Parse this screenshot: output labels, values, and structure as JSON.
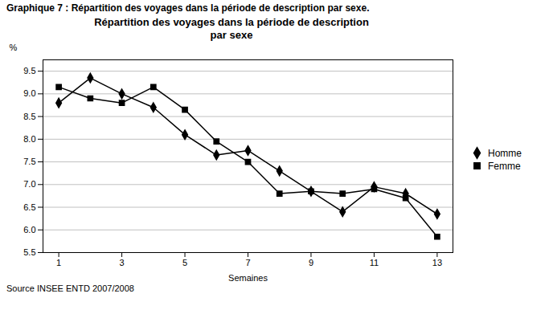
{
  "chart_data": {
    "type": "line",
    "title": "Graphique 7 : Répartition des voyages dans la période de description par sexe.",
    "subtitle": "Répartition des voyages dans la période de description\npar  sexe",
    "x_label": "Semaines",
    "y_label": "%",
    "source": "Source INSEE ENTD 2007/2008",
    "x": [
      1,
      2,
      3,
      4,
      5,
      6,
      7,
      8,
      9,
      10,
      11,
      12,
      13
    ],
    "series": [
      {
        "name": "Homme",
        "color": "#000000",
        "marker": "diamond",
        "values": [
          8.8,
          9.35,
          9.0,
          8.7,
          8.1,
          7.65,
          7.75,
          7.3,
          6.85,
          6.4,
          6.95,
          6.8,
          6.35
        ]
      },
      {
        "name": "Femme",
        "color": "#000000",
        "marker": "square",
        "values": [
          9.15,
          8.9,
          8.8,
          9.15,
          8.65,
          7.95,
          7.5,
          6.8,
          6.85,
          6.8,
          6.9,
          6.7,
          5.85
        ]
      }
    ],
    "xlim": [
      0.5,
      13.5
    ],
    "xticks": [
      1,
      3,
      5,
      7,
      9,
      11,
      13
    ],
    "ylim": [
      5.5,
      9.75
    ],
    "yticks": [
      5.5,
      {
        "value": 6.0,
        "label": "6.0"
      },
      6.5,
      {
        "value": 7.0,
        "label": "7.0"
      },
      7.5,
      {
        "value": 8.0,
        "label": "8.0"
      },
      8.5,
      {
        "value": 9.0,
        "label": "9.0"
      },
      9.5
    ],
    "grid": true,
    "legend": "right"
  }
}
